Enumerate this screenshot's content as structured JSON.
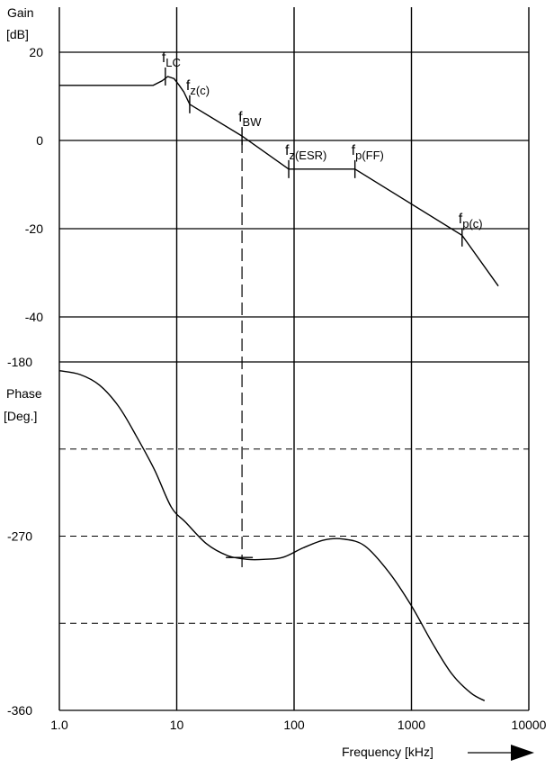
{
  "chart_data": {
    "type": "line",
    "x_scale": "log",
    "xlim": [
      1,
      10000
    ],
    "x_ticks": [
      1,
      10,
      100,
      1000,
      10000
    ],
    "x_tick_labels": [
      "1.0",
      "10",
      "100",
      "1000",
      "10000"
    ],
    "xlabel": "Frequency [kHz]",
    "grid": true,
    "gain": {
      "ylabel_line1": "Gain",
      "ylabel_line2": "[dB]",
      "ylim": [
        -40,
        20
      ],
      "y_ticks": [
        20,
        0,
        -20,
        -40
      ],
      "y_tick_labels": [
        "20",
        "0",
        "-20",
        "-40"
      ],
      "curve": {
        "x": [
          1,
          6.3,
          7.5,
          8.4,
          9.5,
          10.5,
          11.5,
          12.9,
          36,
          90,
          330,
          2700,
          5500
        ],
        "y": [
          12.5,
          12.5,
          13.5,
          14.5,
          14.0,
          12.5,
          11.0,
          8.2,
          1.0,
          -6.5,
          -6.5,
          -21.5,
          -33.0
        ]
      },
      "markers": [
        {
          "x": 8,
          "y": 14.5,
          "label": "f",
          "sub": "LC"
        },
        {
          "x": 12.9,
          "y": 8.2,
          "label": "f",
          "sub": "z(c)"
        },
        {
          "x": 36,
          "y": 1.0,
          "label": "f",
          "sub": "BW"
        },
        {
          "x": 90,
          "y": -6.5,
          "label": "f",
          "sub": "z(ESR)"
        },
        {
          "x": 330,
          "y": -6.5,
          "label": "f",
          "sub": "p(FF)"
        },
        {
          "x": 2700,
          "y": -22.0,
          "label": "f",
          "sub": "p(c)"
        }
      ]
    },
    "phase": {
      "ylabel_line1": "Phase",
      "ylabel_line2": "[Deg.]",
      "ylim": [
        -360,
        -180
      ],
      "y_ticks": [
        -180,
        -270,
        -360
      ],
      "y_tick_labels": [
        "-180",
        "-270",
        "-360"
      ],
      "dashed_y": [
        -225,
        -270,
        -315
      ],
      "curve": {
        "x": [
          1,
          1.5,
          2.2,
          3.2,
          4.5,
          6.5,
          9,
          12,
          18,
          27,
          40,
          55,
          80,
          120,
          180,
          260,
          400,
          650,
          1000,
          1500,
          2200,
          3200,
          4200
        ],
        "y": [
          -184.5,
          -186.5,
          -192,
          -203,
          -218,
          -236,
          -255,
          -263,
          -274,
          -280,
          -282,
          -282,
          -281,
          -276,
          -272,
          -271.5,
          -275,
          -289,
          -306,
          -325,
          -341,
          -351,
          -355
        ]
      },
      "marker": {
        "x": 36,
        "y": -281
      }
    },
    "bandwidth_dashed_x": 36
  }
}
